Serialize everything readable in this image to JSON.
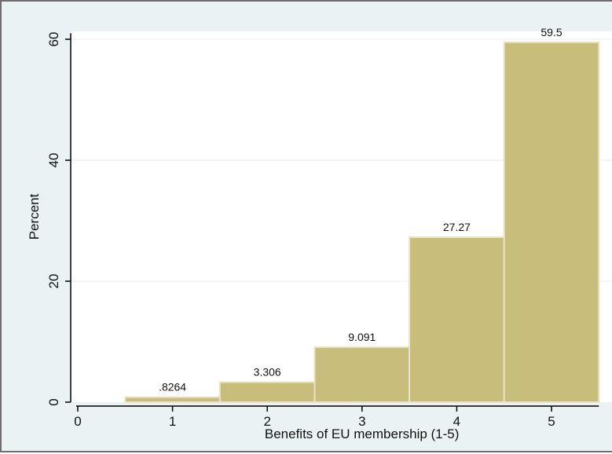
{
  "chart_data": {
    "type": "bar",
    "title": "",
    "xlabel": "Benefits of EU membership (1-5)",
    "ylabel": "Percent",
    "categories": [
      "1",
      "2",
      "3",
      "4",
      "5"
    ],
    "x": [
      1,
      2,
      3,
      4,
      5
    ],
    "values": [
      0.8264,
      3.306,
      9.091,
      27.27,
      59.5
    ],
    "data_labels": [
      ".8264",
      "3.306",
      "9.091",
      "27.27",
      "59.5"
    ],
    "xlim": [
      0,
      5.5
    ],
    "ylim": [
      0,
      61
    ],
    "xticks": [
      "0",
      "1",
      "2",
      "3",
      "4",
      "5"
    ],
    "yticks": [
      "0",
      "20",
      "40",
      "60"
    ],
    "grid": true,
    "legend": "none",
    "colors": {
      "bar_fill": "#c9bd7c",
      "bar_edge": "#e9e3c4",
      "plot_background": "#ffffff",
      "outer_background": "#eaf2f3",
      "grid": "#e6eef0",
      "axis": "#000000"
    }
  }
}
